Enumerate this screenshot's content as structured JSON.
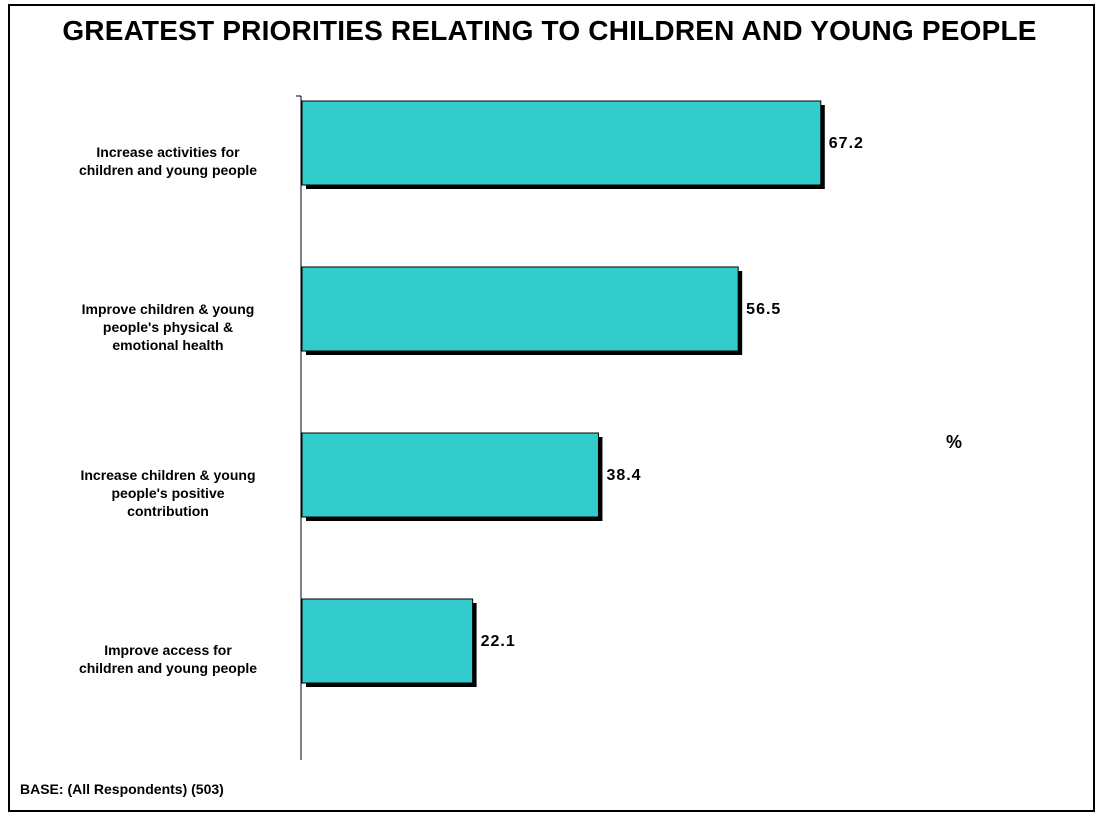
{
  "chart_data": {
    "type": "bar",
    "orientation": "horizontal",
    "title": "GREATEST PRIORITIES RELATING TO CHILDREN AND YOUNG PEOPLE",
    "categories": [
      [
        "Increase activities for",
        "children and young people"
      ],
      [
        "Improve children & young",
        "people's physical &",
        "emotional health"
      ],
      [
        "Increase children & young",
        "people's positive",
        "contribution"
      ],
      [
        "Improve access for",
        "children and young people"
      ]
    ],
    "values": [
      67.2,
      56.5,
      38.4,
      22.1
    ],
    "value_labels": [
      "67.2",
      "56.5",
      "38.4",
      "22.1"
    ],
    "unit_label": "%",
    "xlim": [
      0,
      100
    ],
    "grid": false,
    "legend": "none",
    "bar_color": "#33CCCC",
    "shadow_color": "#000000"
  },
  "footer": {
    "base_text": "BASE:  (All Respondents) (503)"
  }
}
